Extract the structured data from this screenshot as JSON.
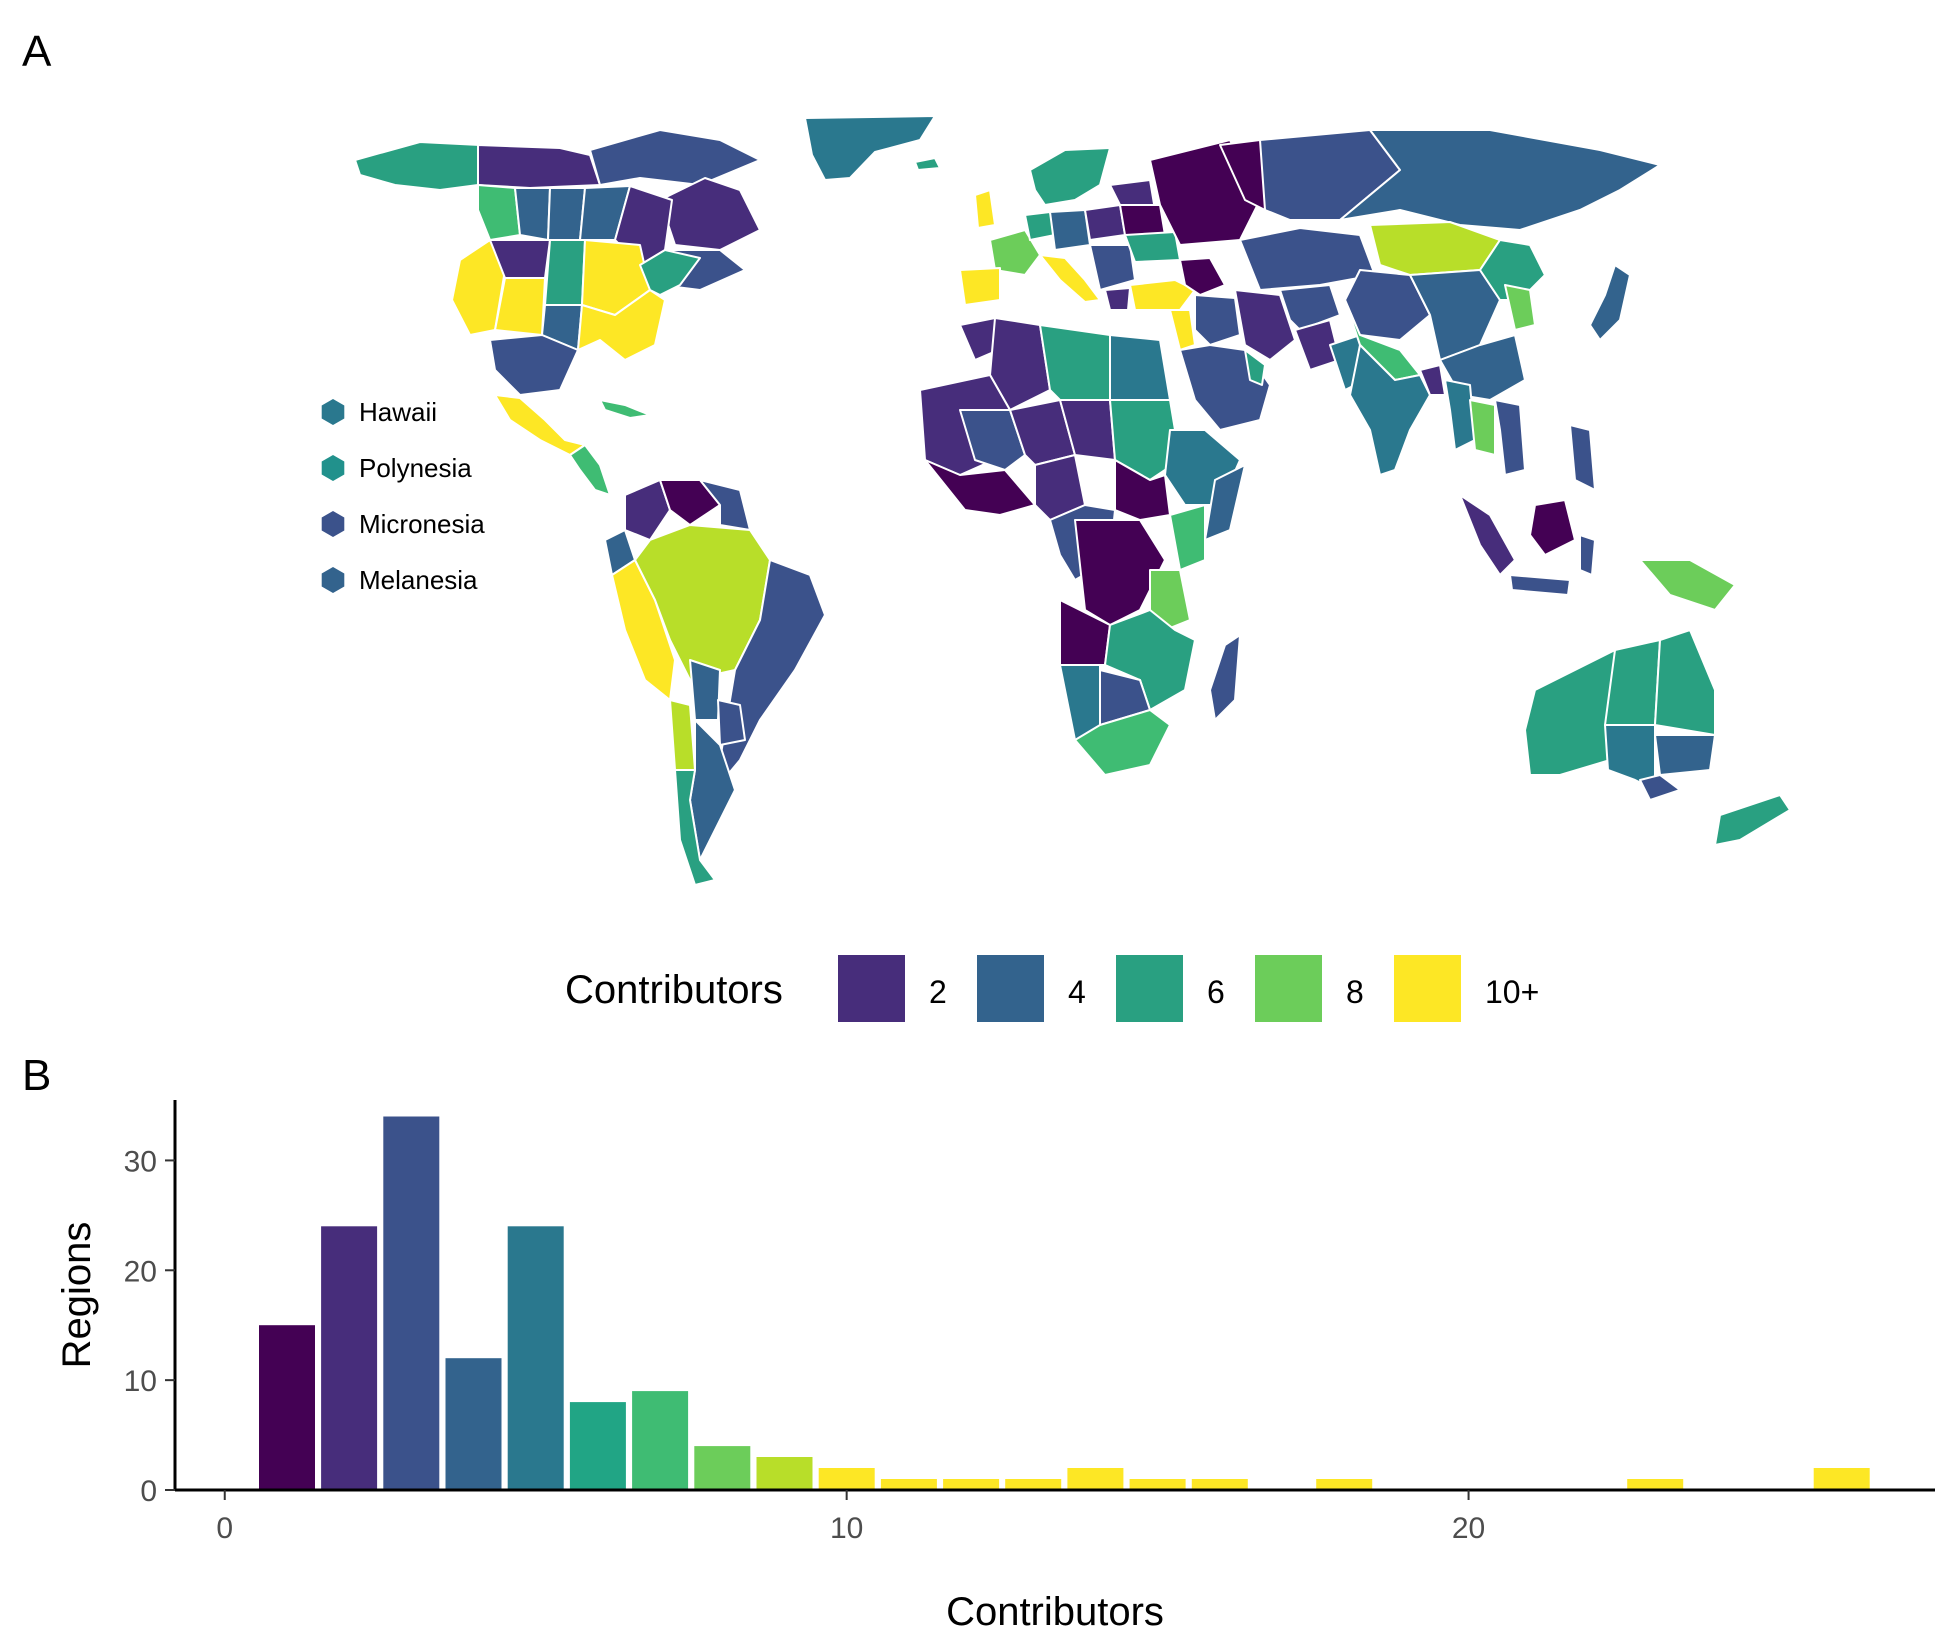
{
  "panels": {
    "a_label": "A",
    "b_label": "B"
  },
  "map": {
    "type": "choropleth",
    "islands": [
      {
        "label": "Hawaii",
        "color": "#2a788e"
      },
      {
        "label": "Polynesia",
        "color": "#21918c"
      },
      {
        "label": "Micronesia",
        "color": "#3b528b"
      },
      {
        "label": "Melanesia",
        "color": "#33638d"
      }
    ],
    "legend": {
      "title": "Contributors",
      "placement": "bottom",
      "items": [
        {
          "label": "2",
          "color": "#472d7b"
        },
        {
          "label": "4",
          "color": "#33638d"
        },
        {
          "label": "6",
          "color": "#29a081"
        },
        {
          "label": "8",
          "color": "#6ccd5a"
        },
        {
          "label": "10+",
          "color": "#fde725"
        }
      ]
    }
  },
  "chart_data": {
    "type": "bar",
    "xlabel": "Contributors",
    "ylabel": "Regions",
    "xlim": [
      -0.8,
      27.5
    ],
    "ylim": [
      0,
      35.5
    ],
    "xticks": [
      0,
      10,
      20
    ],
    "yticks": [
      0,
      10,
      20,
      30
    ],
    "grid": false,
    "series": [
      {
        "x": 1,
        "value": 15,
        "color": "#440154"
      },
      {
        "x": 2,
        "value": 24,
        "color": "#472d7b"
      },
      {
        "x": 3,
        "value": 34,
        "color": "#3b528b"
      },
      {
        "x": 4,
        "value": 12,
        "color": "#33638d"
      },
      {
        "x": 5,
        "value": 24,
        "color": "#2a788e"
      },
      {
        "x": 6,
        "value": 8,
        "color": "#21a585"
      },
      {
        "x": 7,
        "value": 9,
        "color": "#3fbc73"
      },
      {
        "x": 8,
        "value": 4,
        "color": "#6ccd5a"
      },
      {
        "x": 9,
        "value": 3,
        "color": "#b8de29"
      },
      {
        "x": 10,
        "value": 2,
        "color": "#fde725"
      },
      {
        "x": 11,
        "value": 1,
        "color": "#fde725"
      },
      {
        "x": 12,
        "value": 1,
        "color": "#fde725"
      },
      {
        "x": 13,
        "value": 1,
        "color": "#fde725"
      },
      {
        "x": 14,
        "value": 2,
        "color": "#fde725"
      },
      {
        "x": 15,
        "value": 1,
        "color": "#fde725"
      },
      {
        "x": 16,
        "value": 1,
        "color": "#fde725"
      },
      {
        "x": 18,
        "value": 1,
        "color": "#fde725"
      },
      {
        "x": 23,
        "value": 1,
        "color": "#fde725"
      },
      {
        "x": 26,
        "value": 2,
        "color": "#fde725"
      }
    ]
  }
}
